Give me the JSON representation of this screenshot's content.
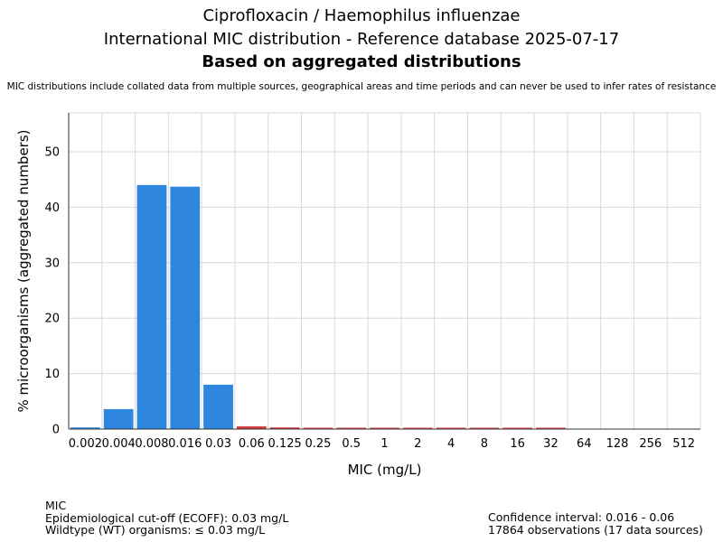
{
  "header": {
    "title_line1": "Ciprofloxacin / Haemophilus influenzae",
    "title_line2": "International MIC distribution - Reference database 2025-07-17",
    "title_line3": "Based on aggregated distributions",
    "subtitle": "MIC distributions include collated data from multiple sources, geographical areas and time periods and can never be used to infer rates of resistance"
  },
  "chart_data": {
    "type": "bar",
    "xlabel": "MIC (mg/L)",
    "ylabel": "% microorganisms (aggregated numbers)",
    "categories": [
      "0.002",
      "0.004",
      "0.008",
      "0.016",
      "0.03",
      "0.06",
      "0.125",
      "0.25",
      "0.5",
      "1",
      "2",
      "4",
      "8",
      "16",
      "32",
      "64",
      "128",
      "256",
      "512"
    ],
    "values": [
      0.3,
      3.6,
      44.0,
      43.7,
      8.0,
      0.5,
      0.3,
      0.15,
      0.15,
      0.15,
      0.15,
      0.15,
      0.15,
      0.15,
      0.15,
      0,
      0,
      0,
      0
    ],
    "ylim": [
      0,
      57
    ],
    "yticks": [
      0,
      10,
      20,
      30,
      40,
      50
    ],
    "grid": true,
    "colors": {
      "wildtype": "#2e86de",
      "non_wildtype": "#d63b3b"
    },
    "wildtype_upto_index": 4
  },
  "footer": {
    "left": [
      "MIC",
      "Epidemiological cut-off (ECOFF): 0.03 mg/L",
      "Wildtype (WT) organisms: ≤ 0.03 mg/L"
    ],
    "right": [
      "Confidence interval: 0.016 - 0.06",
      "17864 observations (17 data sources)"
    ]
  }
}
